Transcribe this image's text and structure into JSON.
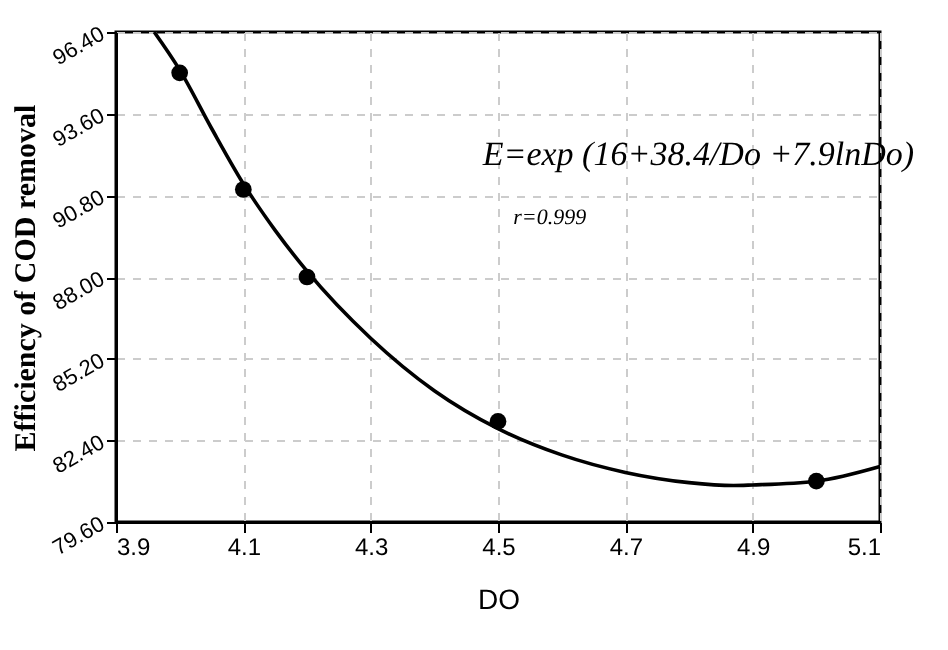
{
  "chart_data": {
    "type": "scatter",
    "xlabel": "DO",
    "ylabel": "Efficiency of COD removal",
    "xlim": [
      3.9,
      5.1
    ],
    "xticks": [
      3.9,
      4.1,
      4.3,
      4.5,
      4.7,
      4.9,
      5.1
    ],
    "ylim": [
      79.6,
      96.4
    ],
    "yticks": [
      {
        "value": 79.6,
        "label": "79.60"
      },
      {
        "value": 82.4,
        "label": "82.40"
      },
      {
        "value": 85.2,
        "label": "85.20"
      },
      {
        "value": 88.0,
        "label": "88.00"
      },
      {
        "value": 90.8,
        "label": "90.80"
      },
      {
        "value": 93.6,
        "label": "93.60"
      },
      {
        "value": 96.4,
        "label": "96.40"
      }
    ],
    "grid": true,
    "marker": "circle",
    "series": [
      {
        "color": "#000000",
        "x": [
          4.0,
          4.1,
          4.2,
          4.5,
          5.0
        ],
        "values": [
          95.0,
          91.0,
          88.0,
          83.05,
          81.0
        ]
      },
      {
        "type": "line",
        "color": "#000000",
        "line_style": "solid",
        "marker": "none",
        "x": [
          3.96,
          4.0,
          4.05,
          4.1,
          4.15,
          4.2,
          4.3,
          4.4,
          4.5,
          4.6,
          4.7,
          4.8,
          4.87,
          4.9,
          5.0,
          5.1
        ],
        "values": [
          96.4,
          95.1,
          93.1,
          91.2,
          89.6,
          88.2,
          85.9,
          84.1,
          82.8,
          81.9,
          81.3,
          80.95,
          80.85,
          80.87,
          81.0,
          81.5
        ]
      }
    ],
    "annotations": [
      "E=exp (16+38.4/Do +7.9lnDo)",
      "r=0.999"
    ]
  }
}
